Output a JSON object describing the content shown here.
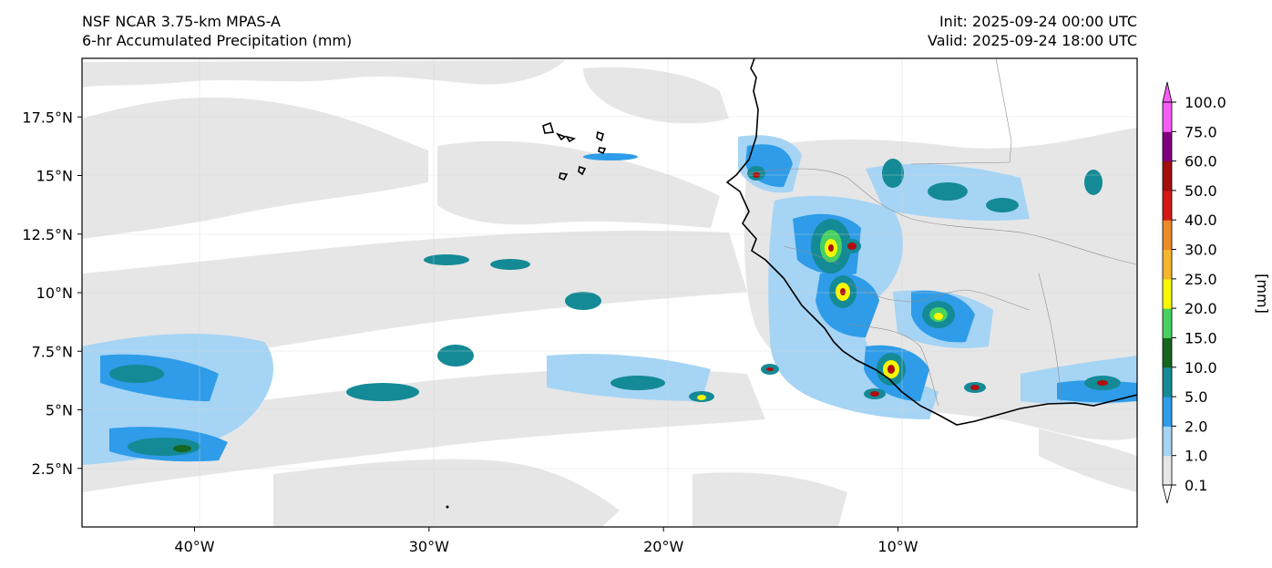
{
  "header": {
    "model": "NSF NCAR 3.75-km MPAS-A",
    "field": "6-hr Accumulated Precipitation (mm)",
    "init": "Init: 2025-09-24 00:00 UTC",
    "valid": "Valid: 2025-09-24 18:00 UTC"
  },
  "map": {
    "lon_range": [
      -44.8,
      0.2
    ],
    "lat_range": [
      0.0,
      20.0
    ],
    "lon_ticks": [
      {
        "value": -40,
        "label": "40°W"
      },
      {
        "value": -30,
        "label": "30°W"
      },
      {
        "value": -20,
        "label": "20°W"
      },
      {
        "value": -10,
        "label": "10°W"
      }
    ],
    "lat_ticks": [
      {
        "value": 2.5,
        "label": "2.5°N"
      },
      {
        "value": 5,
        "label": "5°N"
      },
      {
        "value": 7.5,
        "label": "7.5°N"
      },
      {
        "value": 10,
        "label": "10°N"
      },
      {
        "value": 12.5,
        "label": "12.5°N"
      },
      {
        "value": 15,
        "label": "15°N"
      },
      {
        "value": 17.5,
        "label": "17.5°N"
      }
    ],
    "gridlines": true
  },
  "colorbar": {
    "unit_label": "[mm]",
    "levels": [
      "0.1",
      "1.0",
      "2.0",
      "5.0",
      "10.0",
      "15.0",
      "20.0",
      "25.0",
      "30.0",
      "40.0",
      "50.0",
      "60.0",
      "75.0",
      "100.0"
    ],
    "colors": [
      "#e6e6e6",
      "#a6d4f5",
      "#2e9ce8",
      "#148a96",
      "#17661f",
      "#47d160",
      "#f7f702",
      "#f5b52e",
      "#eb8a26",
      "#d41717",
      "#a30d0d",
      "#800080",
      "#f55cf5"
    ]
  },
  "precip_colors": {
    "trace": "#e6e6e6",
    "light": "#a6d4f5",
    "moderate": "#2e9ce8",
    "heavy": "#148a96",
    "green": "#17661f",
    "yellow": "#f7f702",
    "red": "#b00d0d"
  }
}
